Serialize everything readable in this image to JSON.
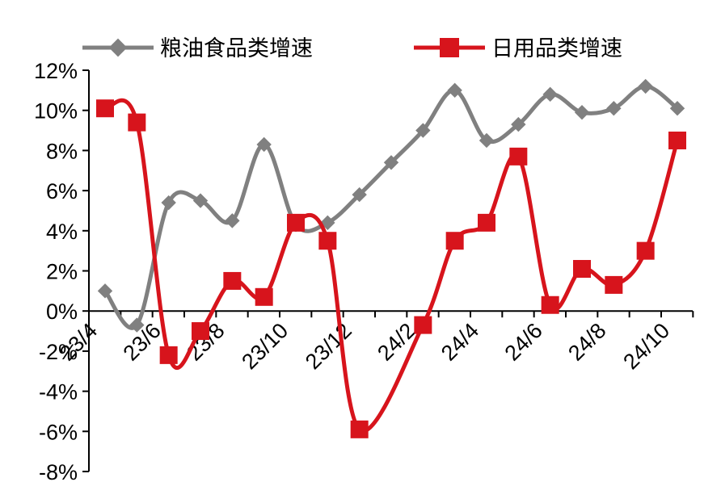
{
  "chart_data": {
    "type": "line",
    "x": [
      "23/4",
      "23/5",
      "23/6",
      "23/7",
      "23/8",
      "23/9",
      "23/10",
      "23/11",
      "23/12",
      "24/1",
      "24/2",
      "24/3",
      "24/4",
      "24/5",
      "24/6",
      "24/7",
      "24/8",
      "24/9",
      "24/10"
    ],
    "x_tick_labels": [
      "23/4",
      "23/6",
      "23/8",
      "23/10",
      "23/12",
      "24/2",
      "24/4",
      "24/6",
      "24/8",
      "24/10"
    ],
    "series": [
      {
        "name": "粮油食品类增速",
        "color": "#808080",
        "marker": "diamond",
        "values": [
          1.0,
          -0.7,
          5.4,
          5.5,
          4.5,
          8.3,
          4.3,
          4.4,
          5.8,
          7.4,
          9.0,
          11.0,
          8.5,
          9.3,
          10.8,
          9.9,
          10.1,
          11.2,
          10.1
        ]
      },
      {
        "name": "日用品类增速",
        "color": "#d7141c",
        "marker": "square",
        "values": [
          10.1,
          9.4,
          -2.2,
          -1.0,
          1.5,
          0.7,
          4.4,
          3.5,
          -5.9,
          null,
          -0.7,
          3.5,
          4.4,
          7.7,
          0.3,
          2.1,
          1.3,
          3.0,
          8.5
        ]
      }
    ],
    "y_ticks": [
      "12%",
      "10%",
      "8%",
      "6%",
      "4%",
      "2%",
      "0%",
      "-2%",
      "-4%",
      "-6%",
      "-8%"
    ],
    "ylim": [
      -8,
      12
    ],
    "legend_position": "top",
    "grid": false
  }
}
